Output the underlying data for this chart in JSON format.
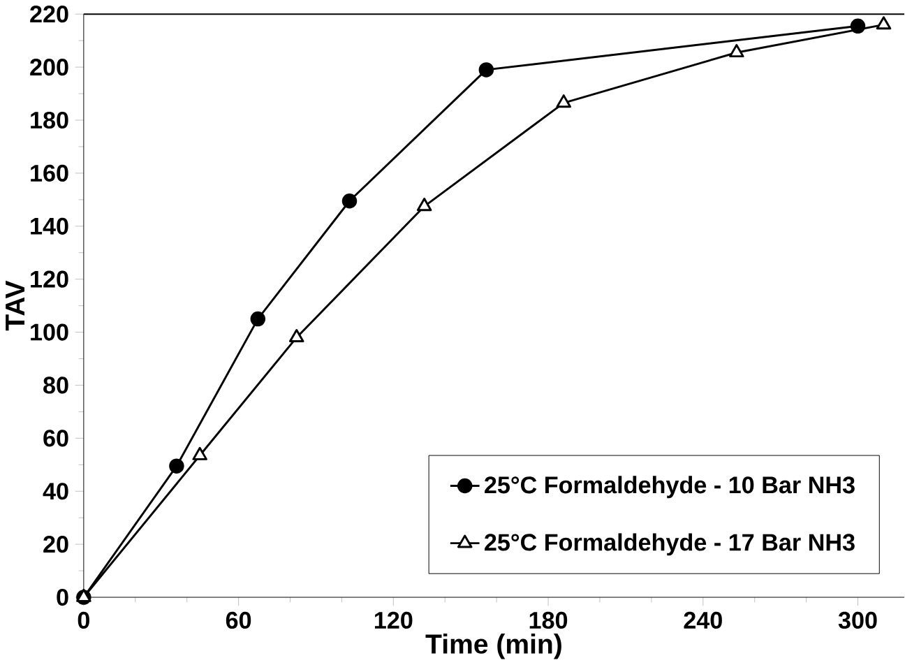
{
  "chart_data": {
    "type": "line",
    "xlabel": "Time (min)",
    "ylabel": "TAV",
    "xlim": [
      0,
      318
    ],
    "ylim": [
      0,
      220
    ],
    "xticks": [
      0,
      60,
      120,
      180,
      240,
      300
    ],
    "yticks": [
      0,
      20,
      40,
      60,
      80,
      100,
      120,
      140,
      160,
      180,
      200,
      220
    ],
    "grid": false,
    "legend": "bottom right",
    "series": [
      {
        "name": "25°C Formaldehyde - 10 Bar NH3",
        "color": "#000000",
        "marker": "circle",
        "x": [
          0,
          36,
          67.5,
          103,
          156,
          300
        ],
        "values": [
          0,
          49.5,
          105,
          149.5,
          199,
          215.5
        ]
      },
      {
        "name": "25°C Formaldehyde - 17 Bar NH3",
        "color": "#000000",
        "marker": "triangle",
        "x": [
          0,
          45,
          82.5,
          132,
          186,
          253,
          310
        ],
        "values": [
          0,
          53.5,
          98,
          147.5,
          186.5,
          205.5,
          216
        ]
      }
    ]
  }
}
